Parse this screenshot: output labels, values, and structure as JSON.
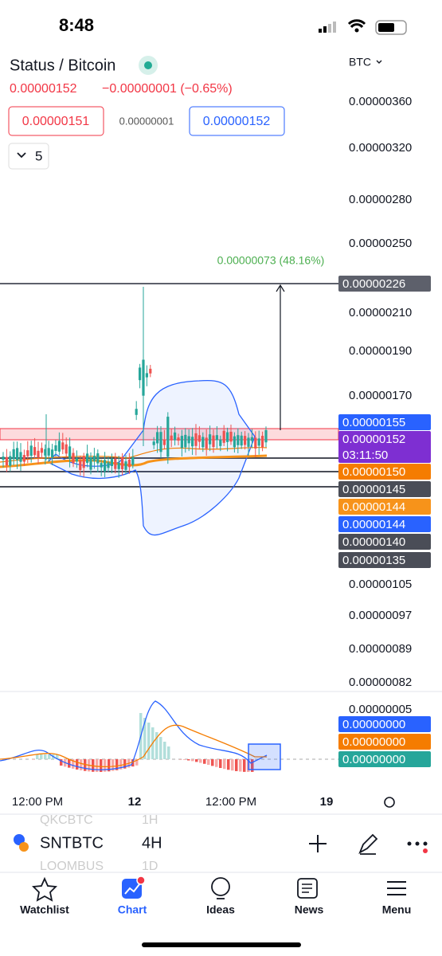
{
  "status_bar": {
    "time": "8:48"
  },
  "header": {
    "title": "Status / Bitcoin",
    "price": "0.00000152",
    "change": "−0.00000001 (−0.65%)",
    "bid": "0.00000151",
    "spread": "0.00000001",
    "ask": "0.00000152",
    "indicator_count": "5",
    "currency": "BTC"
  },
  "price_axis": [
    "0.00000360",
    "0.00000320",
    "0.00000280",
    "0.00000250",
    "0.00000210",
    "0.00000190",
    "0.00000170",
    "0.00000105",
    "0.00000097",
    "0.00000089",
    "0.00000082"
  ],
  "measure_label": "0.00000073 (48.16%)",
  "price_tags": [
    {
      "text": "0.00000226",
      "color": "#5d606b"
    },
    {
      "text": "0.00000155",
      "color": "#2962ff"
    },
    {
      "text": "0.00000152",
      "color": "#7e2fd2",
      "countdown": "03:11:50"
    },
    {
      "text": "0.00000150",
      "color": "#f57c00"
    },
    {
      "text": "0.00000145",
      "color": "#4a4d57"
    },
    {
      "text": "0.00000144",
      "color": "#f7931a"
    },
    {
      "text": "0.00000144",
      "color": "#2962ff"
    },
    {
      "text": "0.00000140",
      "color": "#4a4d57"
    },
    {
      "text": "0.00000135",
      "color": "#4a4d57"
    }
  ],
  "indicator_axis": "0.00000005",
  "indicator_tags": [
    {
      "text": "0.00000000",
      "color": "#2962ff"
    },
    {
      "text": "0.00000000",
      "color": "#f57c00"
    },
    {
      "text": "0.00000000",
      "color": "#26a69a"
    }
  ],
  "time_axis": [
    "12:00 PM",
    "12",
    "12:00 PM",
    "19"
  ],
  "toolbar": {
    "symbol": "SNTBTC",
    "interval": "4H",
    "prev_symbol": "QKCBTC",
    "prev_interval": "1H",
    "next_symbol": "LOOMBUS",
    "next_interval": "1D"
  },
  "nav": [
    "Watchlist",
    "Chart",
    "Ideas",
    "News",
    "Menu"
  ]
}
